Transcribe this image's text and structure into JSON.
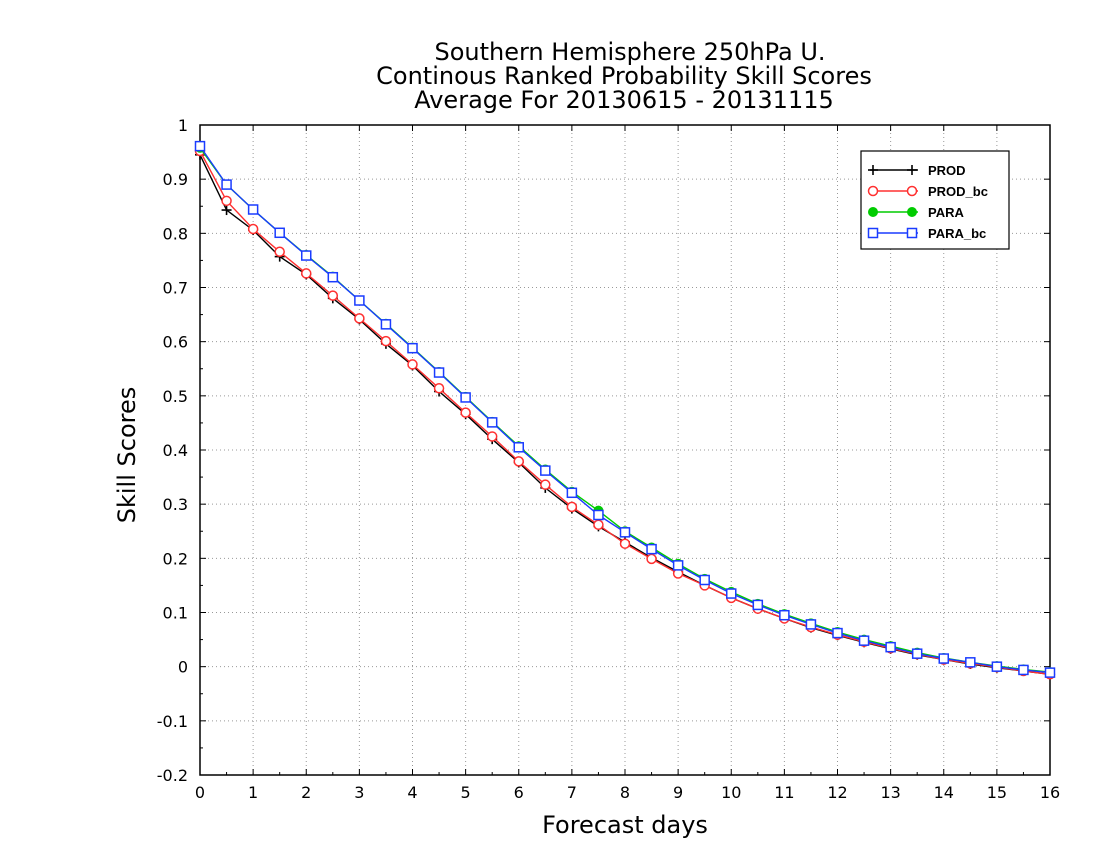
{
  "chart_data": {
    "type": "line",
    "title_lines": [
      "Southern Hemisphere 250hPa U.",
      "Continous Ranked Probability Skill Scores",
      "Average For 20130615 - 20131115"
    ],
    "xlabel": "Forecast days",
    "ylabel": "Skill Scores",
    "xlim": [
      0,
      16
    ],
    "ylim": [
      -0.2,
      1
    ],
    "xticks": [
      "0",
      "1",
      "2",
      "3",
      "4",
      "5",
      "6",
      "7",
      "8",
      "9",
      "10",
      "11",
      "12",
      "13",
      "14",
      "15",
      "16"
    ],
    "yticks": [
      "-0.2",
      "-0.1",
      "0",
      "0.1",
      "0.2",
      "0.3",
      "0.4",
      "0.5",
      "0.6",
      "0.7",
      "0.8",
      "0.9",
      "1"
    ],
    "grid": true,
    "legend_position": "top-right",
    "x": [
      0,
      0.5,
      1,
      1.5,
      2,
      2.5,
      3,
      3.5,
      4,
      4.5,
      5,
      5.5,
      6,
      6.5,
      7,
      7.5,
      8,
      8.5,
      9,
      9.5,
      10,
      10.5,
      11,
      11.5,
      12,
      12.5,
      13,
      13.5,
      14,
      14.5,
      15,
      15.5,
      16
    ],
    "series": [
      {
        "name": "PROD",
        "color": "#000000",
        "marker": "plus",
        "values": [
          0.945,
          0.843,
          0.806,
          0.757,
          0.724,
          0.68,
          0.641,
          0.596,
          0.556,
          0.508,
          0.466,
          0.42,
          0.377,
          0.33,
          0.292,
          0.259,
          0.23,
          0.201,
          0.175,
          0.15,
          0.127,
          0.107,
          0.089,
          0.072,
          0.058,
          0.045,
          0.033,
          0.022,
          0.013,
          0.005,
          -0.002,
          -0.008,
          -0.014
        ]
      },
      {
        "name": "PROD_bc",
        "color": "#ff3030",
        "marker": "circle",
        "values": [
          0.952,
          0.86,
          0.808,
          0.766,
          0.726,
          0.685,
          0.643,
          0.601,
          0.558,
          0.514,
          0.469,
          0.425,
          0.379,
          0.336,
          0.295,
          0.262,
          0.227,
          0.199,
          0.172,
          0.15,
          0.127,
          0.107,
          0.089,
          0.073,
          0.059,
          0.046,
          0.034,
          0.023,
          0.013,
          0.006,
          -0.001,
          -0.008,
          -0.014
        ]
      },
      {
        "name": "PARA",
        "color": "#00cc00",
        "marker": "dot",
        "values": [
          0.958,
          0.89,
          0.844,
          0.801,
          0.76,
          0.72,
          0.676,
          0.633,
          0.589,
          0.544,
          0.498,
          0.452,
          0.407,
          0.364,
          0.323,
          0.288,
          0.25,
          0.22,
          0.19,
          0.162,
          0.138,
          0.116,
          0.097,
          0.08,
          0.064,
          0.05,
          0.038,
          0.026,
          0.016,
          0.008,
          0.001,
          -0.005,
          -0.01
        ]
      },
      {
        "name": "PARA_bc",
        "color": "#1a3cff",
        "marker": "square",
        "values": [
          0.961,
          0.89,
          0.844,
          0.801,
          0.759,
          0.719,
          0.676,
          0.632,
          0.588,
          0.543,
          0.497,
          0.451,
          0.405,
          0.362,
          0.321,
          0.28,
          0.248,
          0.217,
          0.187,
          0.16,
          0.135,
          0.114,
          0.095,
          0.078,
          0.062,
          0.048,
          0.036,
          0.024,
          0.015,
          0.008,
          0.0,
          -0.006,
          -0.011
        ]
      }
    ]
  }
}
